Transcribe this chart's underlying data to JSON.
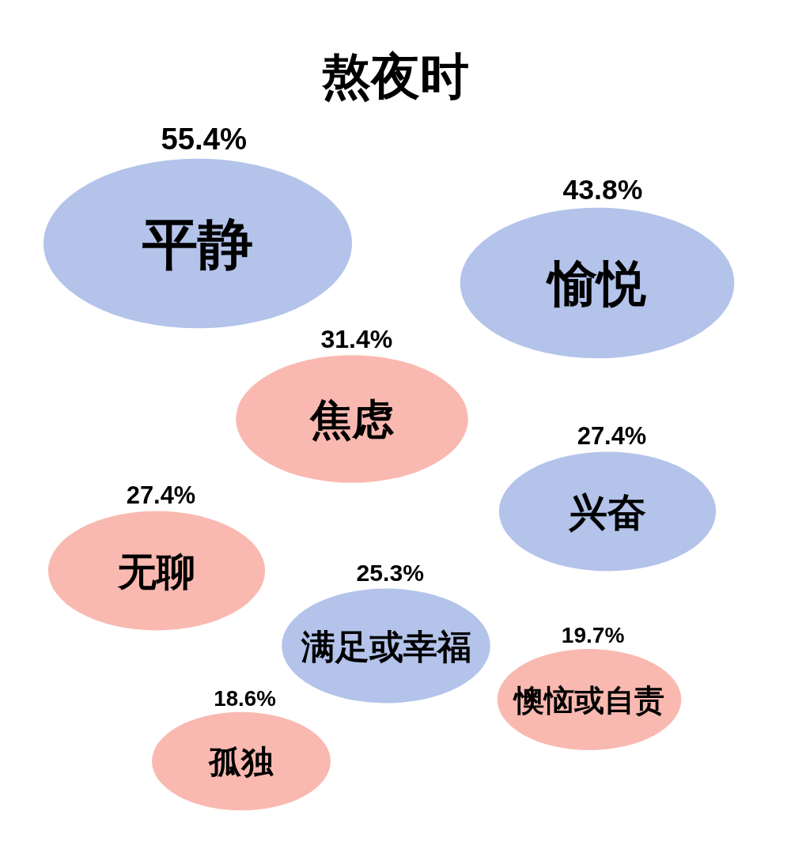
{
  "chart_data": {
    "type": "other",
    "title": "熬夜时",
    "categories": [
      "平静",
      "愉悦",
      "焦虑",
      "兴奋",
      "无聊",
      "满足或幸福",
      "懊恼或自责",
      "孤独"
    ],
    "values": [
      55.4,
      43.8,
      31.4,
      27.4,
      27.4,
      25.3,
      19.7,
      18.6
    ],
    "value_labels": [
      "55.4%",
      "43.8%",
      "31.4%",
      "27.4%",
      "27.4%",
      "25.3%",
      "19.7%",
      "18.6%"
    ],
    "colors": [
      "#b3c3ea",
      "#b3c3ea",
      "#f9b9b0",
      "#b3c3ea",
      "#f9b9b0",
      "#b3c3ea",
      "#f9b9b0",
      "#f9b9b0"
    ]
  }
}
